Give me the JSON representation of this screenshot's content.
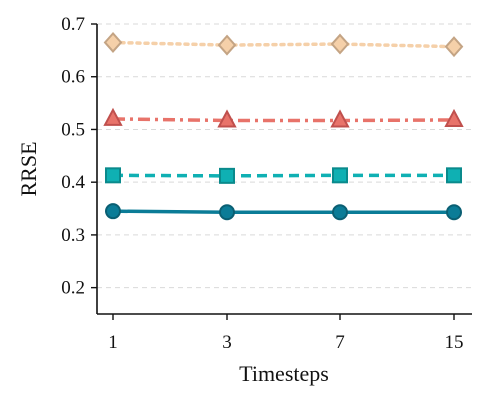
{
  "chart_data": {
    "type": "line",
    "x": [
      "1",
      "3",
      "7",
      "15"
    ],
    "xlabel": "Timesteps",
    "ylabel": "RRSE",
    "ylim": [
      0.15,
      0.7
    ],
    "yticks": [
      "0.2",
      "0.3",
      "0.4",
      "0.5",
      "0.6",
      "0.7"
    ],
    "grid": "horizontal dashed",
    "series": [
      {
        "values": [
          0.665,
          0.66,
          0.662,
          0.657
        ],
        "color": "#f5d0a9",
        "edge_color": "#c4a484",
        "marker": "diamond",
        "line_style": "dotted"
      },
      {
        "values": [
          0.52,
          0.517,
          0.517,
          0.518
        ],
        "color": "#e8736a",
        "edge_color": "#c0504d",
        "marker": "triangle",
        "line_style": "dash-dot"
      },
      {
        "values": [
          0.413,
          0.412,
          0.413,
          0.413
        ],
        "color": "#0fb0b3",
        "edge_color": "#0a8a8c",
        "marker": "square",
        "line_style": "dashed"
      },
      {
        "values": [
          0.345,
          0.343,
          0.343,
          0.343
        ],
        "color": "#0b7c97",
        "edge_color": "#0a5f73",
        "marker": "circle",
        "line_style": "solid"
      }
    ]
  }
}
